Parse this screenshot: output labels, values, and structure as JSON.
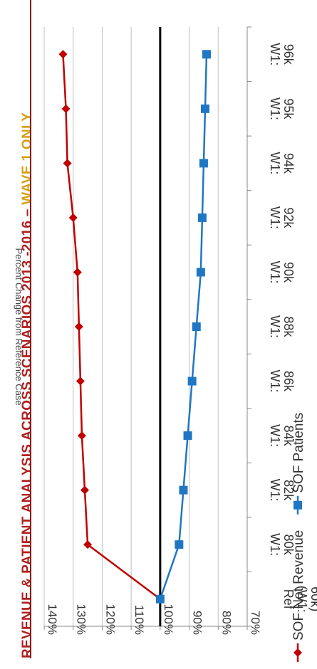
{
  "title": {
    "main": "REVENUE & PATIENT ANALYSIS ACROSS SCENARIOS 2013 -2016 – ",
    "highlight": "WAVE 1 ONLY"
  },
  "colors": {
    "title": "#b01e1e",
    "highlight": "#d4a017",
    "revenue": "#c00000",
    "patients": "#1f77c4",
    "reference_line": "#000000",
    "grid": "#c0c0c0"
  },
  "chart_data": {
    "type": "line",
    "orientation": "rotated-90-clockwise",
    "ylabel": "Percent Change from Reference Case",
    "xlabel": "",
    "ylim": [
      0.7,
      1.4
    ],
    "yticks": [
      "70%",
      "80%",
      "90%",
      "100%",
      "110%",
      "120%",
      "130%",
      "140%"
    ],
    "ytick_values": [
      0.7,
      0.8,
      0.9,
      1.0,
      1.1,
      1.2,
      1.3,
      1.4
    ],
    "reference_value": 1.0,
    "grid": true,
    "legend_position": "bottom",
    "categories": [
      [
        "Ref",
        "(W1:",
        "60k)"
      ],
      [
        "W1:",
        "80k"
      ],
      [
        "W1:",
        "82k"
      ],
      [
        "W1:",
        "84k"
      ],
      [
        "W1:",
        "86k"
      ],
      [
        "W1:",
        "88k"
      ],
      [
        "W1:",
        "90k"
      ],
      [
        "W1:",
        "92k"
      ],
      [
        "W1:",
        "94k"
      ],
      [
        "W1:",
        "95k"
      ],
      [
        "W1:",
        "96k"
      ]
    ],
    "series": [
      {
        "name": "SOF Net Revenue",
        "marker": "diamond",
        "values": [
          1.0,
          1.25,
          1.26,
          1.27,
          1.275,
          1.28,
          1.285,
          1.3,
          1.32,
          1.325,
          1.335
        ]
      },
      {
        "name": "SOF Patients",
        "marker": "square",
        "values": [
          1.0,
          0.935,
          0.92,
          0.905,
          0.89,
          0.875,
          0.86,
          0.855,
          0.85,
          0.845,
          0.84
        ]
      }
    ]
  }
}
